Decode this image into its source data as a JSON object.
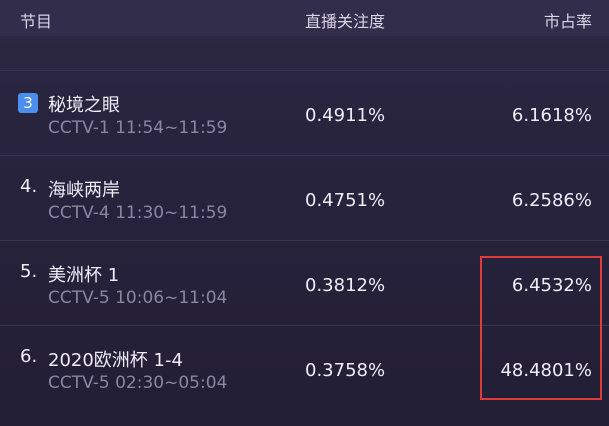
{
  "header": {
    "columns": [
      "节目",
      "直播关注度",
      "市占率"
    ]
  },
  "rows": [
    {
      "rank": "3",
      "name": "秘境之眼",
      "channel_time": "CCTV-1 11:54~11:59",
      "attention": "0.4911%",
      "share": "6.1618%"
    },
    {
      "rank": "4.",
      "name": "海峡两岸",
      "channel_time": "CCTV-4 11:30~11:59",
      "attention": "0.4751%",
      "share": "6.2586%"
    },
    {
      "rank": "5.",
      "name": "美洲杯 1",
      "channel_time": "CCTV-5 10:06~11:04",
      "attention": "0.3812%",
      "share": "6.4532%"
    },
    {
      "rank": "6.",
      "name": "2020欧洲杯 1-4",
      "channel_time": "CCTV-5 02:30~05:04",
      "attention": "0.3758%",
      "share": "48.4801%"
    }
  ]
}
